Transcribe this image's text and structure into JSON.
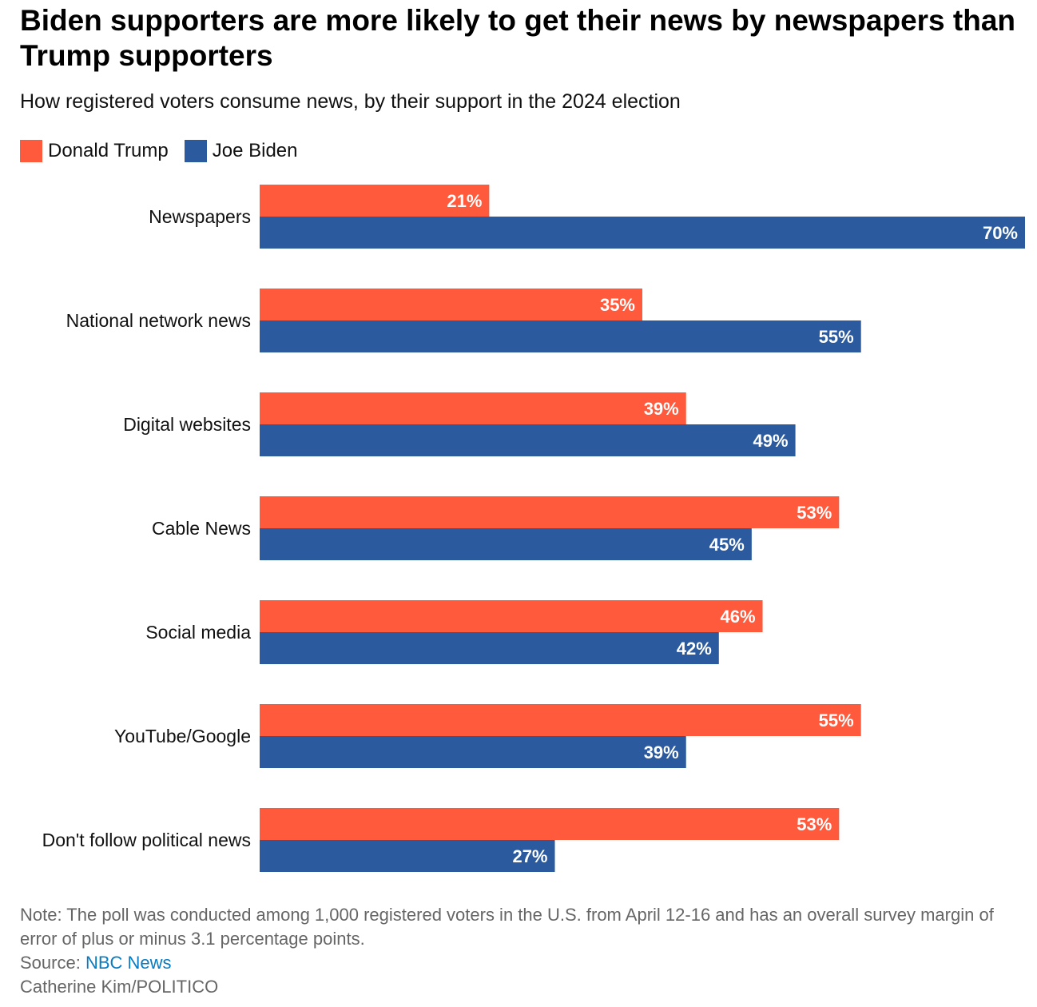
{
  "colors": {
    "trump": "#ff5a3c",
    "biden": "#2b5b9e",
    "source_link": "#0a7bc1"
  },
  "chart_data": {
    "type": "bar",
    "orientation": "horizontal",
    "title": "Biden supporters are more likely to get their news by newspapers than Trump supporters",
    "subtitle": "How registered voters consume news, by their support in the 2024 election",
    "categories": [
      "Newspapers",
      "National network news",
      "Digital websites",
      "Cable News",
      "Social media",
      "YouTube/Google",
      "Don't follow political news"
    ],
    "series": [
      {
        "name": "Donald Trump",
        "color": "#ff5a3c",
        "values": [
          21,
          35,
          39,
          53,
          46,
          55,
          53
        ]
      },
      {
        "name": "Joe Biden",
        "color": "#2b5b9e",
        "values": [
          70,
          55,
          49,
          45,
          42,
          39,
          27
        ]
      }
    ],
    "value_suffix": "%",
    "xlim": [
      0,
      70
    ],
    "grid": false,
    "legend": "top-left"
  },
  "footer": {
    "note": "Note: The poll was conducted among 1,000 registered voters in the U.S. from April 12-16 and has an overall survey margin of error of plus or minus 3.1 percentage points.",
    "source_prefix": "Source: ",
    "source_name": "NBC News",
    "credit": "Catherine Kim/POLITICO"
  }
}
